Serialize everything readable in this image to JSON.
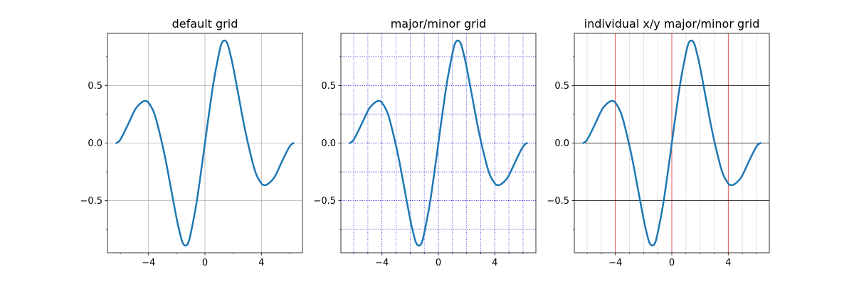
{
  "chart_data": [
    {
      "type": "line",
      "title": "default grid",
      "xlim": [
        -6.912,
        6.912
      ],
      "ylim": [
        -0.9525,
        0.9525
      ],
      "x_ticks": [
        -4,
        0,
        4
      ],
      "x_tick_labels": [
        "−4",
        "0",
        "4"
      ],
      "y_ticks": [
        -0.5,
        0.0,
        0.5
      ],
      "y_tick_labels": [
        "−0.5",
        "0.0",
        "0.5"
      ],
      "x_minor_ticks": [
        -6,
        -2,
        2,
        6
      ],
      "y_minor_ticks": [
        -0.75,
        -0.25,
        0.25,
        0.75
      ],
      "grid": {
        "major_x": true,
        "major_y": true,
        "minor_x": false,
        "minor_y": false,
        "major_color": "#b0b0b0",
        "major_style": "solid"
      },
      "series": [
        {
          "function": "sin(x)*sin(x/2)*... (damped wave)",
          "color": "#1f77b4"
        }
      ]
    },
    {
      "type": "line",
      "title": "major/minor grid",
      "xlim": [
        -6.912,
        6.912
      ],
      "ylim": [
        -0.9525,
        0.9525
      ],
      "x_ticks": [
        -4,
        0,
        4
      ],
      "x_tick_labels": [
        "−4",
        "0",
        "4"
      ],
      "y_ticks": [
        -0.5,
        0.0,
        0.5
      ],
      "y_tick_labels": [
        "−0.5",
        "0.0",
        "0.5"
      ],
      "x_minor_ticks": [
        -6,
        -5,
        -3,
        -2,
        -1,
        1,
        2,
        3,
        5,
        6
      ],
      "y_minor_ticks": [
        -0.75,
        -0.25,
        0.25,
        0.75
      ],
      "grid": {
        "major_x": true,
        "major_y": true,
        "minor_x": true,
        "minor_y": true,
        "major_color": "#0000cc",
        "minor_color": "#3333dd",
        "major_style": "dotted"
      },
      "series": [
        {
          "color": "#1f77b4"
        }
      ]
    },
    {
      "type": "line",
      "title": "individual x/y major/minor grid",
      "xlim": [
        -6.912,
        6.912
      ],
      "ylim": [
        -0.9525,
        0.9525
      ],
      "x_ticks": [
        -4,
        0,
        4
      ],
      "x_tick_labels": [
        "−4",
        "0",
        "4"
      ],
      "y_ticks": [
        -0.5,
        0.0,
        0.5
      ],
      "y_tick_labels": [
        "−0.5",
        "0.0",
        "0.5"
      ],
      "x_minor_ticks": [
        -6,
        -5,
        -3,
        -2,
        -1,
        1,
        2,
        3,
        5,
        6
      ],
      "y_minor_ticks": [
        -0.75,
        -0.25,
        0.25,
        0.75
      ],
      "grid": {
        "major_x": true,
        "major_y": true,
        "minor_x": true,
        "minor_y": false,
        "major_x_color": "#d62728",
        "major_y_color": "#000000",
        "minor_x_color": "#dddddd"
      },
      "series": [
        {
          "color": "#1f77b4"
        }
      ]
    }
  ],
  "series_points": {
    "x": [
      -6.2832,
      -6.0,
      -5.5,
      -5.0,
      -4.7,
      -4.4,
      -4.2,
      -4.0,
      -3.6,
      -3.2,
      -2.8,
      -2.4,
      -2.0,
      -1.8,
      -1.6,
      -1.4,
      -1.2,
      -1.0,
      -0.6,
      -0.2,
      0.0,
      0.2,
      0.6,
      1.0,
      1.2,
      1.4,
      1.6,
      1.8,
      2.0,
      2.4,
      2.8,
      3.2,
      3.6,
      4.0,
      4.2,
      4.4,
      4.7,
      5.0,
      5.5,
      6.0,
      6.2832
    ],
    "y": [
      0.0,
      0.03,
      0.15,
      0.28,
      0.33,
      0.36,
      0.365,
      0.35,
      0.26,
      0.08,
      -0.14,
      -0.4,
      -0.66,
      -0.77,
      -0.86,
      -0.89,
      -0.87,
      -0.78,
      -0.52,
      -0.18,
      0.0,
      0.18,
      0.52,
      0.78,
      0.87,
      0.89,
      0.86,
      0.77,
      0.66,
      0.4,
      0.14,
      -0.08,
      -0.26,
      -0.35,
      -0.365,
      -0.36,
      -0.33,
      -0.28,
      -0.15,
      -0.03,
      0.0
    ]
  }
}
